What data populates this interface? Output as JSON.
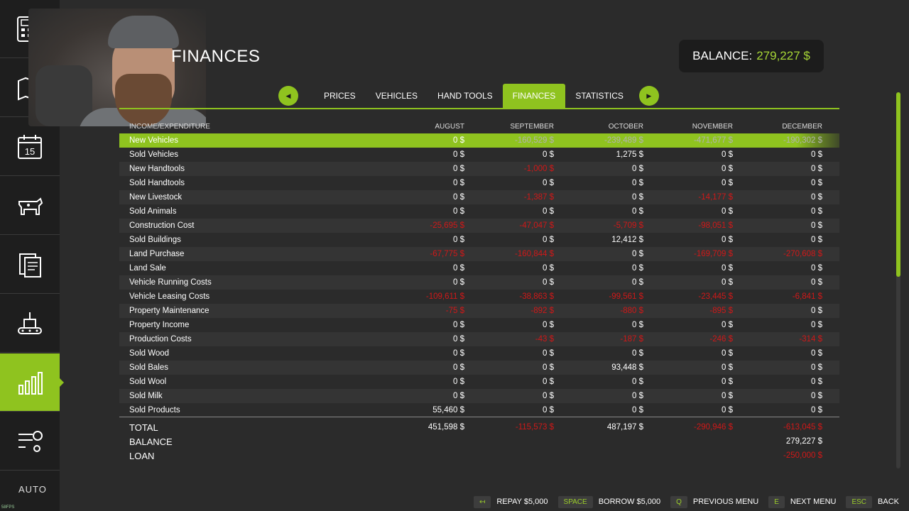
{
  "header": {
    "title": "FINANCES"
  },
  "balance": {
    "label": "BALANCE:",
    "value": "279,227 $"
  },
  "tabs": [
    {
      "label": "PRICES",
      "active": false
    },
    {
      "label": "VEHICLES",
      "active": false
    },
    {
      "label": "HAND TOOLS",
      "active": false
    },
    {
      "label": "FINANCES",
      "active": true
    },
    {
      "label": "STATISTICS",
      "active": false
    }
  ],
  "sidebar": {
    "items": [
      {
        "icon": "calculator-icon"
      },
      {
        "icon": "map-icon"
      },
      {
        "icon": "calendar-icon",
        "text": "15"
      },
      {
        "icon": "cow-icon"
      },
      {
        "icon": "contracts-icon"
      },
      {
        "icon": "production-icon"
      },
      {
        "icon": "bar-chart-icon",
        "active": true
      },
      {
        "icon": "settings-icon"
      }
    ],
    "bottom_label": "AUTO"
  },
  "table": {
    "header": [
      "INCOME/EXPENDITURE",
      "AUGUST",
      "SEPTEMBER",
      "OCTOBER",
      "NOVEMBER",
      "DECEMBER"
    ],
    "rows": [
      {
        "label": "New Vehicles",
        "values": [
          "0 $",
          "-160,529 $",
          "-239,489 $",
          "-471,677 $",
          "-190,302 $"
        ],
        "neg": [
          false,
          true,
          true,
          true,
          true
        ]
      },
      {
        "label": "Sold Vehicles",
        "values": [
          "0 $",
          "0 $",
          "1,275 $",
          "0 $",
          "0 $"
        ],
        "neg": [
          false,
          false,
          false,
          false,
          false
        ]
      },
      {
        "label": "New Handtools",
        "values": [
          "0 $",
          "-1,000 $",
          "0 $",
          "0 $",
          "0 $"
        ],
        "neg": [
          false,
          true,
          false,
          false,
          false
        ]
      },
      {
        "label": "Sold Handtools",
        "values": [
          "0 $",
          "0 $",
          "0 $",
          "0 $",
          "0 $"
        ],
        "neg": [
          false,
          false,
          false,
          false,
          false
        ]
      },
      {
        "label": "New Livestock",
        "values": [
          "0 $",
          "-1,387 $",
          "0 $",
          "-14,177 $",
          "0 $"
        ],
        "neg": [
          false,
          true,
          false,
          true,
          false
        ]
      },
      {
        "label": "Sold Animals",
        "values": [
          "0 $",
          "0 $",
          "0 $",
          "0 $",
          "0 $"
        ],
        "neg": [
          false,
          false,
          false,
          false,
          false
        ]
      },
      {
        "label": "Construction Cost",
        "values": [
          "-25,695 $",
          "-47,047 $",
          "-5,709 $",
          "-98,051 $",
          "0 $"
        ],
        "neg": [
          true,
          true,
          true,
          true,
          false
        ]
      },
      {
        "label": "Sold Buildings",
        "values": [
          "0 $",
          "0 $",
          "12,412 $",
          "0 $",
          "0 $"
        ],
        "neg": [
          false,
          false,
          false,
          false,
          false
        ]
      },
      {
        "label": "Land Purchase",
        "values": [
          "-67,775 $",
          "-160,844 $",
          "0 $",
          "-169,709 $",
          "-270,608 $"
        ],
        "neg": [
          true,
          true,
          false,
          true,
          true
        ]
      },
      {
        "label": "Land Sale",
        "values": [
          "0 $",
          "0 $",
          "0 $",
          "0 $",
          "0 $"
        ],
        "neg": [
          false,
          false,
          false,
          false,
          false
        ]
      },
      {
        "label": "Vehicle Running Costs",
        "values": [
          "0 $",
          "0 $",
          "0 $",
          "0 $",
          "0 $"
        ],
        "neg": [
          false,
          false,
          false,
          false,
          false
        ]
      },
      {
        "label": "Vehicle Leasing Costs",
        "values": [
          "-109,611 $",
          "-38,863 $",
          "-99,561 $",
          "-23,445 $",
          "-6,841 $"
        ],
        "neg": [
          true,
          true,
          true,
          true,
          true
        ]
      },
      {
        "label": "Property Maintenance",
        "values": [
          "-75 $",
          "-892 $",
          "-880 $",
          "-895 $",
          "0 $"
        ],
        "neg": [
          true,
          true,
          true,
          true,
          false
        ]
      },
      {
        "label": "Property Income",
        "values": [
          "0 $",
          "0 $",
          "0 $",
          "0 $",
          "0 $"
        ],
        "neg": [
          false,
          false,
          false,
          false,
          false
        ]
      },
      {
        "label": "Production Costs",
        "values": [
          "0 $",
          "-43 $",
          "-187 $",
          "-246 $",
          "-314 $"
        ],
        "neg": [
          false,
          true,
          true,
          true,
          true
        ]
      },
      {
        "label": "Sold Wood",
        "values": [
          "0 $",
          "0 $",
          "0 $",
          "0 $",
          "0 $"
        ],
        "neg": [
          false,
          false,
          false,
          false,
          false
        ]
      },
      {
        "label": "Sold Bales",
        "values": [
          "0 $",
          "0 $",
          "93,448 $",
          "0 $",
          "0 $"
        ],
        "neg": [
          false,
          false,
          false,
          false,
          false
        ]
      },
      {
        "label": "Sold Wool",
        "values": [
          "0 $",
          "0 $",
          "0 $",
          "0 $",
          "0 $"
        ],
        "neg": [
          false,
          false,
          false,
          false,
          false
        ]
      },
      {
        "label": "Sold Milk",
        "values": [
          "0 $",
          "0 $",
          "0 $",
          "0 $",
          "0 $"
        ],
        "neg": [
          false,
          false,
          false,
          false,
          false
        ]
      },
      {
        "label": "Sold Products",
        "values": [
          "55,460 $",
          "0 $",
          "0 $",
          "0 $",
          "0 $"
        ],
        "neg": [
          false,
          false,
          false,
          false,
          false
        ]
      }
    ],
    "totals": [
      {
        "label": "TOTAL",
        "values": [
          "451,598 $",
          "-115,573 $",
          "487,197 $",
          "-290,946 $",
          "-613,045 $"
        ],
        "neg": [
          false,
          true,
          false,
          true,
          true
        ]
      },
      {
        "label": "BALANCE",
        "values": [
          "",
          "",
          "",
          "",
          "279,227 $"
        ],
        "neg": [
          false,
          false,
          false,
          false,
          false
        ]
      },
      {
        "label": "LOAN",
        "values": [
          "",
          "",
          "",
          "",
          "-250,000 $"
        ],
        "neg": [
          false,
          false,
          false,
          false,
          true
        ]
      }
    ]
  },
  "bottombar": [
    {
      "key": "↤",
      "label": "REPAY $5,000"
    },
    {
      "key": "SPACE",
      "label": "BORROW $5,000"
    },
    {
      "key": "Q",
      "label": "PREVIOUS MENU"
    },
    {
      "key": "E",
      "label": "NEXT MENU"
    },
    {
      "key": "ESC",
      "label": "BACK"
    }
  ],
  "fps": "58FPS"
}
